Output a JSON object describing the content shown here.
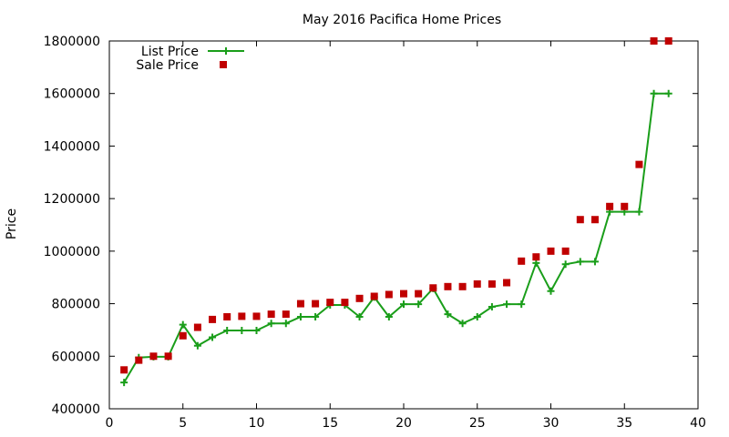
{
  "chart_data": {
    "type": "line",
    "title": "May 2016 Pacifica Home Prices",
    "xlabel": "",
    "ylabel": "Price",
    "xlim": [
      0,
      40
    ],
    "ylim": [
      400000,
      1800000
    ],
    "xticks": [
      0,
      5,
      10,
      15,
      20,
      25,
      30,
      35,
      40
    ],
    "yticks": [
      400000,
      600000,
      800000,
      1000000,
      1200000,
      1400000,
      1600000,
      1800000
    ],
    "grid": false,
    "legend_position": "top-left",
    "x": [
      1,
      2,
      3,
      4,
      5,
      6,
      7,
      8,
      9,
      10,
      11,
      12,
      13,
      14,
      15,
      16,
      17,
      18,
      19,
      20,
      21,
      22,
      23,
      24,
      25,
      26,
      27,
      28,
      29,
      30,
      31,
      32,
      33,
      34,
      35,
      36,
      37,
      38
    ],
    "series": [
      {
        "name": "List Price",
        "style": "line-with-plus-markers",
        "color": "#1a9e1a",
        "values": [
          500000,
          595000,
          598000,
          598000,
          720000,
          640000,
          672000,
          698000,
          698000,
          698000,
          725000,
          725000,
          750000,
          750000,
          795000,
          795000,
          750000,
          825000,
          750000,
          798000,
          798000,
          858000,
          760000,
          725000,
          750000,
          788000,
          798000,
          798000,
          955000,
          848000,
          950000,
          960000,
          960000,
          1150000,
          1150000,
          1150000,
          1600000,
          1600000
        ]
      },
      {
        "name": "Sale Price",
        "style": "square-markers",
        "color": "#c00000",
        "values": [
          548000,
          585000,
          600000,
          600000,
          678000,
          710000,
          740000,
          750000,
          752000,
          752000,
          760000,
          760000,
          800000,
          800000,
          805000,
          805000,
          820000,
          828000,
          835000,
          838000,
          838000,
          860000,
          865000,
          865000,
          875000,
          875000,
          880000,
          962000,
          978000,
          1000000,
          1000000,
          1120000,
          1120000,
          1170000,
          1170000,
          1330000,
          1800000,
          1800000
        ]
      }
    ]
  },
  "colors": {
    "list_price": "#1a9e1a",
    "sale_price": "#c00000",
    "axis": "#000000"
  }
}
